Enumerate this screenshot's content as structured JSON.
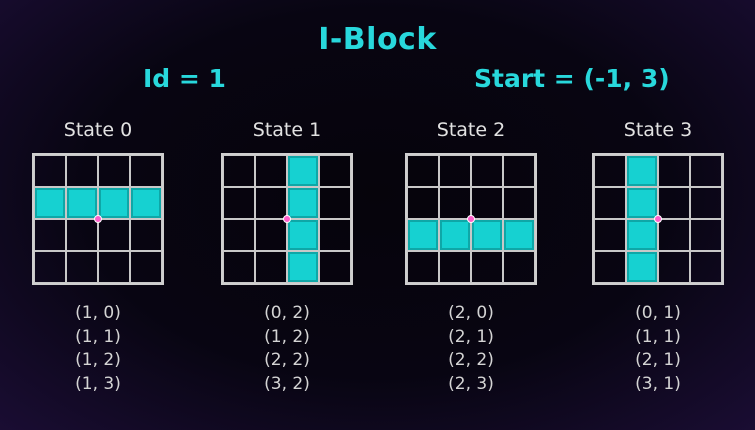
{
  "title": "I-Block",
  "id_label": "Id = 1",
  "start_label": "Start = (-1, 3)",
  "colors": {
    "accent": "#28d8dc",
    "block": "#16d1d1",
    "pivot": "#ff5fcb",
    "background": "#050307"
  },
  "states": [
    {
      "label": "State 0",
      "cells": [
        [
          1,
          0
        ],
        [
          1,
          1
        ],
        [
          1,
          2
        ],
        [
          1,
          3
        ]
      ],
      "coords": [
        "(1, 0)",
        "(1, 1)",
        "(1, 2)",
        "(1, 3)"
      ]
    },
    {
      "label": "State 1",
      "cells": [
        [
          0,
          2
        ],
        [
          1,
          2
        ],
        [
          2,
          2
        ],
        [
          3,
          2
        ]
      ],
      "coords": [
        "(0, 2)",
        "(1, 2)",
        "(2, 2)",
        "(3, 2)"
      ]
    },
    {
      "label": "State 2",
      "cells": [
        [
          2,
          0
        ],
        [
          2,
          1
        ],
        [
          2,
          2
        ],
        [
          2,
          3
        ]
      ],
      "coords": [
        "(2, 0)",
        "(2, 1)",
        "(2, 2)",
        "(2, 3)"
      ]
    },
    {
      "label": "State 3",
      "cells": [
        [
          0,
          1
        ],
        [
          1,
          1
        ],
        [
          2,
          1
        ],
        [
          3,
          1
        ]
      ],
      "coords": [
        "(0, 1)",
        "(1, 1)",
        "(2, 1)",
        "(3, 1)"
      ]
    }
  ]
}
